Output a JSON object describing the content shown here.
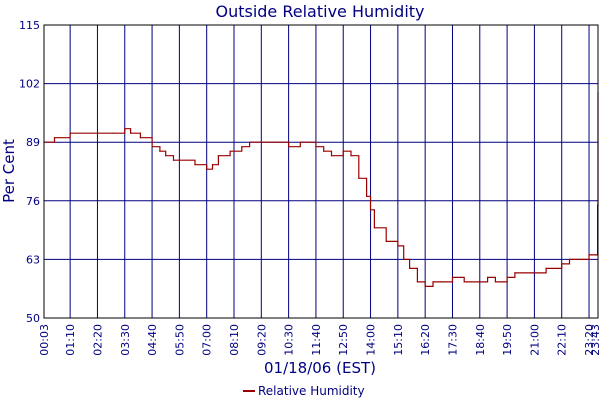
{
  "chart_data": {
    "type": "line",
    "title": "Outside Relative Humidity",
    "xlabel": "01/18/06 (EST)",
    "ylabel": "Per Cent",
    "ylim": [
      50,
      115
    ],
    "y_ticks": [
      50,
      63,
      76,
      89,
      102,
      115
    ],
    "x_ticks": [
      "00:03",
      "01:10",
      "02:20",
      "03:30",
      "04:40",
      "05:50",
      "07:00",
      "08:10",
      "09:20",
      "10:30",
      "11:40",
      "12:50",
      "14:00",
      "15:10",
      "16:20",
      "17:30",
      "18:40",
      "19:50",
      "21:00",
      "22:10",
      "23:20",
      "23:43"
    ],
    "grid": true,
    "legend_position": "bottom",
    "colors": {
      "series": "#990000",
      "grid": "#000080",
      "text": "#000080",
      "frame": "#000000"
    },
    "series": [
      {
        "name": "Relative Humidity",
        "x": [
          "00:03",
          "00:30",
          "01:10",
          "02:20",
          "03:00",
          "03:30",
          "03:45",
          "04:10",
          "04:40",
          "05:00",
          "05:15",
          "05:35",
          "05:50",
          "06:30",
          "07:00",
          "07:15",
          "07:30",
          "08:00",
          "08:30",
          "08:50",
          "09:20",
          "10:00",
          "10:30",
          "11:00",
          "11:40",
          "12:00",
          "12:20",
          "12:50",
          "13:10",
          "13:30",
          "13:50",
          "14:00",
          "14:10",
          "14:40",
          "15:10",
          "15:25",
          "15:40",
          "16:00",
          "16:20",
          "16:40",
          "17:00",
          "17:30",
          "18:00",
          "18:40",
          "19:00",
          "19:20",
          "19:40",
          "19:50",
          "20:10",
          "20:30",
          "21:00",
          "21:30",
          "22:10",
          "22:30",
          "23:00",
          "23:20",
          "23:35",
          "23:40",
          "23:42",
          "23:43"
        ],
        "values": [
          89,
          90,
          91,
          91,
          91,
          92,
          91,
          90,
          88,
          87,
          86,
          85,
          85,
          84,
          83,
          84,
          86,
          87,
          88,
          89,
          89,
          89,
          88,
          89,
          88,
          87,
          86,
          87,
          86,
          81,
          77,
          74,
          70,
          67,
          66,
          63,
          61,
          58,
          57,
          58,
          58,
          59,
          58,
          58,
          59,
          58,
          58,
          59,
          60,
          60,
          60,
          61,
          62,
          63,
          63,
          64,
          64,
          64,
          75,
          100
        ]
      }
    ]
  }
}
